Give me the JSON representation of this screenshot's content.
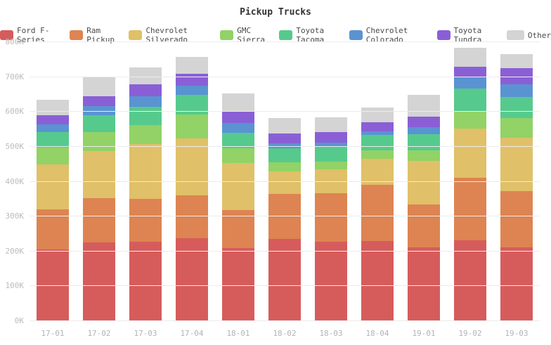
{
  "chart_data": {
    "type": "bar",
    "stacked": true,
    "title": "Pickup Trucks",
    "values_unit": "K (thousands)",
    "ylim": [
      0,
      800
    ],
    "y_ticks": [
      "0K",
      "100K",
      "200K",
      "300K",
      "400K",
      "500K",
      "600K",
      "700K",
      "800K"
    ],
    "grid": true,
    "legend_position": "top",
    "categories": [
      "17-01",
      "17-02",
      "17-03",
      "17-04",
      "18-01",
      "18-02",
      "18-03",
      "18-04",
      "19-01",
      "19-02",
      "19-03"
    ],
    "series": [
      {
        "name": "Ford F-Series",
        "color": "#d65c5c",
        "values": [
          205,
          225,
          228,
          238,
          210,
          235,
          228,
          230,
          212,
          232,
          212
        ]
      },
      {
        "name": "Ram Pickup",
        "color": "#dd8452",
        "values": [
          115,
          128,
          122,
          122,
          108,
          130,
          138,
          160,
          122,
          180,
          160
        ]
      },
      {
        "name": "Chevrolet Silverado",
        "color": "#e0c068",
        "values": [
          130,
          135,
          157,
          165,
          135,
          65,
          70,
          75,
          125,
          140,
          155
        ]
      },
      {
        "name": "GMC Sierra",
        "color": "#92d266",
        "values": [
          48,
          55,
          55,
          68,
          42,
          25,
          22,
          25,
          30,
          50,
          55
        ]
      },
      {
        "name": "Toyota Tacoma",
        "color": "#56ca8c",
        "values": [
          45,
          48,
          52,
          55,
          45,
          40,
          42,
          45,
          48,
          65,
          60
        ]
      },
      {
        "name": "Chevrolet Colorado",
        "color": "#5a93d2",
        "values": [
          22,
          25,
          30,
          28,
          28,
          15,
          12,
          10,
          20,
          35,
          38
        ]
      },
      {
        "name": "Toyota Tundra",
        "color": "#8a5fd6",
        "values": [
          25,
          28,
          35,
          33,
          32,
          28,
          30,
          25,
          30,
          28,
          45
        ]
      },
      {
        "name": "Other",
        "color": "#d4d4d4",
        "values": [
          45,
          56,
          48,
          48,
          53,
          45,
          42,
          42,
          63,
          55,
          40
        ]
      }
    ]
  }
}
